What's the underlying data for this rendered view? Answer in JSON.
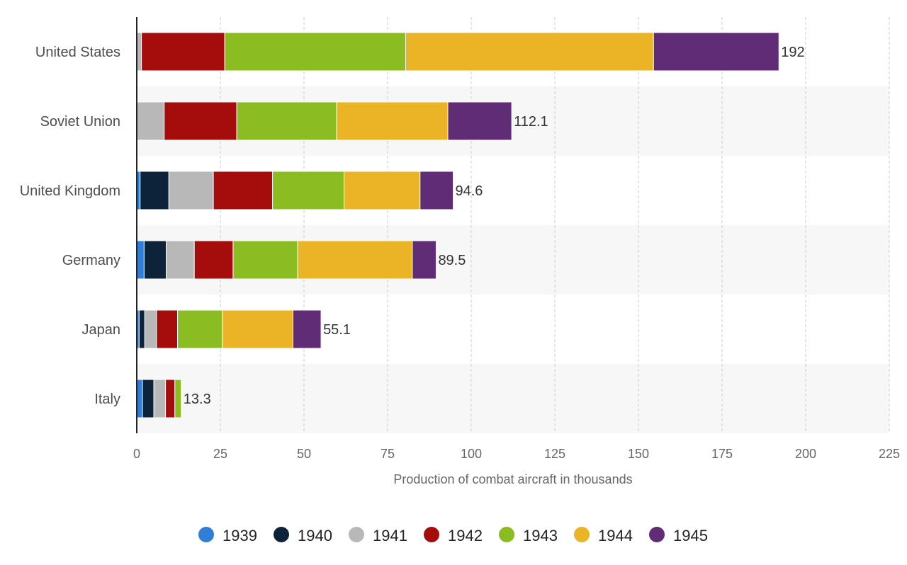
{
  "chart_data": {
    "type": "bar",
    "orientation": "horizontal",
    "stacked": true,
    "title": "",
    "xlabel": "Production of combat aircraft in thousands",
    "ylabel": "",
    "xlim": [
      0,
      225
    ],
    "xticks": [
      0,
      25,
      50,
      75,
      100,
      125,
      150,
      175,
      200,
      225
    ],
    "tick_labels": [
      "0",
      "25",
      "50",
      "75",
      "100",
      "125",
      "150",
      "175",
      "200",
      "225"
    ],
    "grid": true,
    "legend_position": "bottom",
    "categories": [
      "United States",
      "Soviet Union",
      "United Kingdom",
      "Germany",
      "Japan",
      "Italy"
    ],
    "totals": [
      "192",
      "112.1",
      "94.6",
      "89.5",
      "55.1",
      "13.3"
    ],
    "series": [
      {
        "name": "1939",
        "color": "#2f7ed8",
        "values": [
          0.0,
          0.0,
          1.0,
          2.2,
          0.7,
          1.7
        ]
      },
      {
        "name": "1940",
        "color": "#0d233a",
        "values": [
          0.0,
          0.0,
          8.6,
          6.6,
          1.7,
          3.4
        ]
      },
      {
        "name": "1941",
        "color": "#b8b8b8",
        "values": [
          1.4,
          8.2,
          13.3,
          8.4,
          3.5,
          3.5
        ]
      },
      {
        "name": "1942",
        "color": "#a50c0c",
        "values": [
          24.9,
          21.7,
          17.7,
          11.6,
          6.3,
          2.8
        ]
      },
      {
        "name": "1943",
        "color": "#8bbc21",
        "values": [
          54.1,
          29.9,
          21.4,
          19.3,
          13.4,
          1.9
        ]
      },
      {
        "name": "1944",
        "color": "#ebb426",
        "values": [
          74.1,
          33.2,
          22.7,
          34.3,
          21.1,
          0.0
        ]
      },
      {
        "name": "1945",
        "color": "#5f2c75",
        "values": [
          37.5,
          19.1,
          9.9,
          7.1,
          8.4,
          0.0
        ]
      }
    ]
  }
}
